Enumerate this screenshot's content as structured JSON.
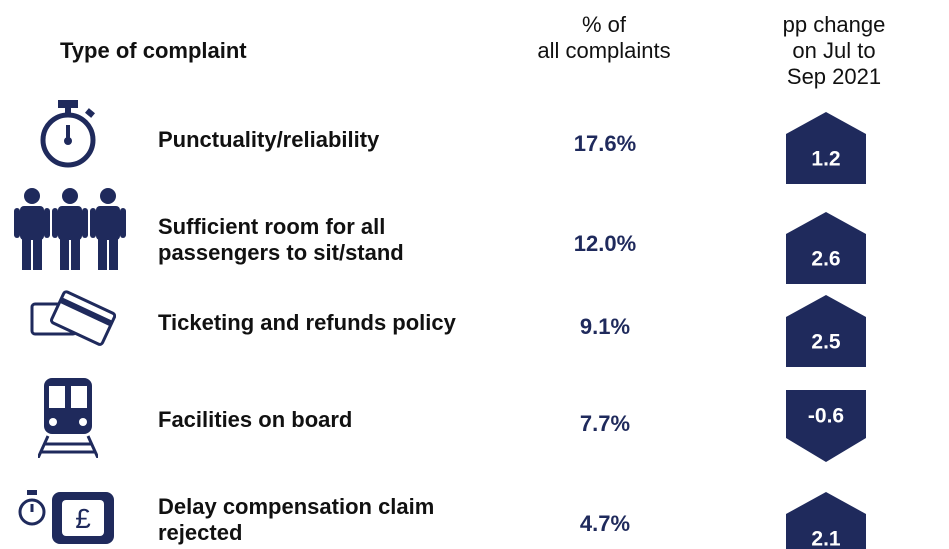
{
  "header": {
    "type": "Type of complaint",
    "share": "% of\nall complaints",
    "change": "pp change\non Jul to Sep 2021"
  },
  "rows": [
    {
      "label": "Punctuality/reliability",
      "share": "17.6%",
      "change": "1.2"
    },
    {
      "label": "Sufficient room for all\npassengers to sit/stand",
      "share": "12.0%",
      "change": "2.6"
    },
    {
      "label": "Ticketing and refunds policy",
      "share": "9.1%",
      "change": "2.5"
    },
    {
      "label": "Facilities on board",
      "share": "7.7%",
      "change": "-0.6"
    },
    {
      "label": "Delay compensation claim\nrejected",
      "share": "4.7%",
      "change": "2.1"
    }
  ]
}
